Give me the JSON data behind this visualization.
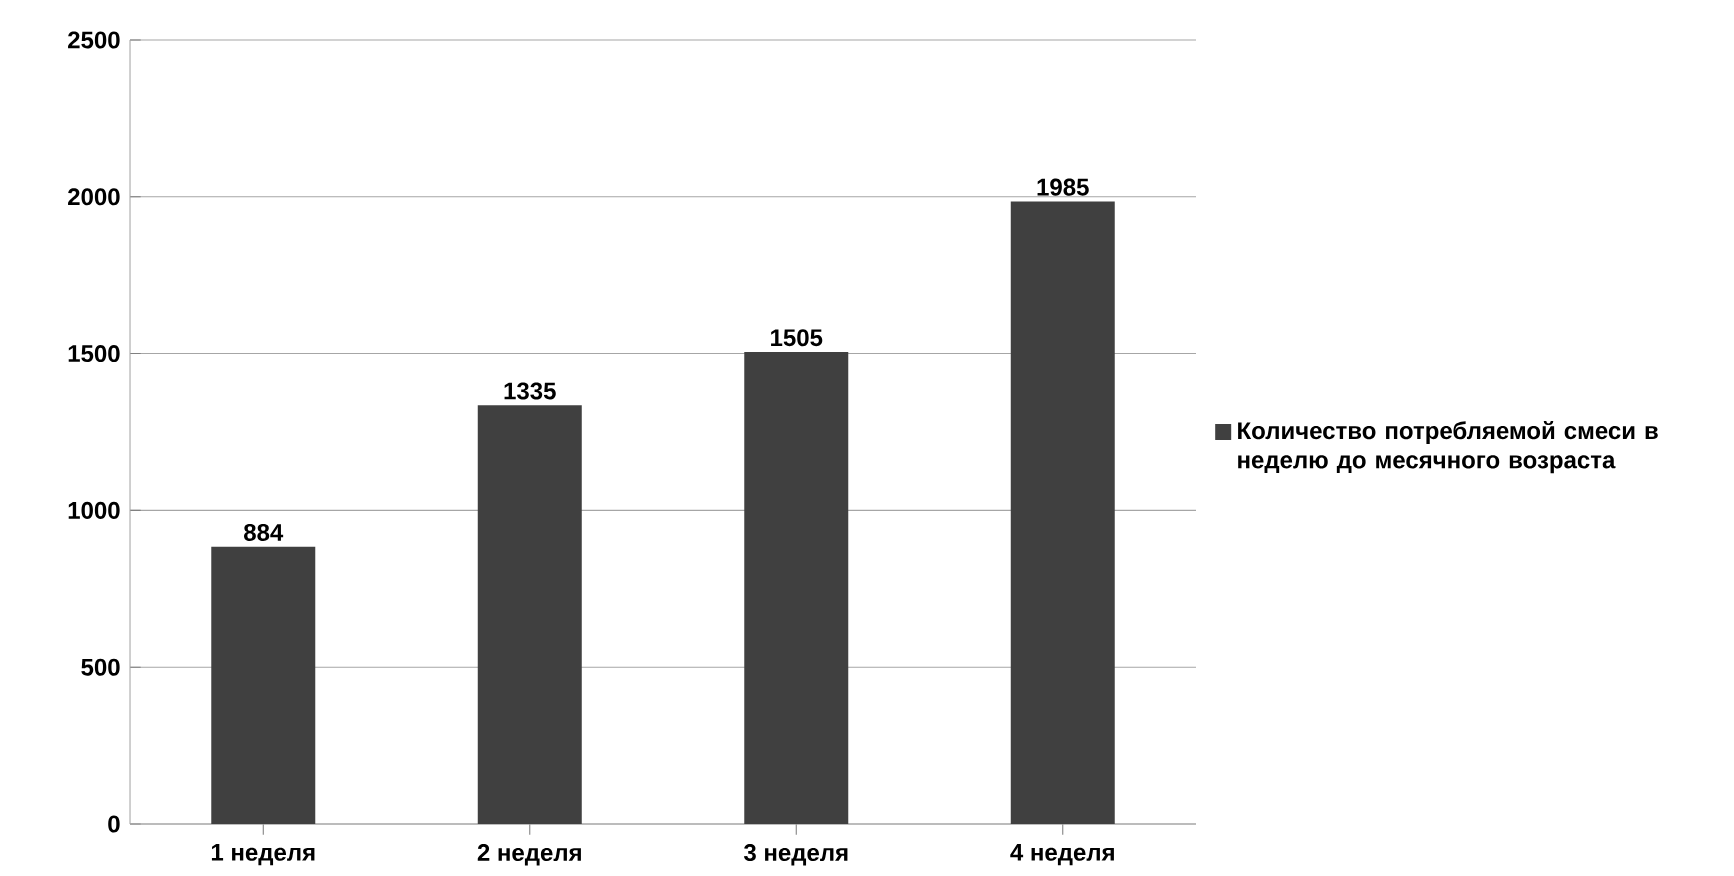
{
  "chart_data": {
    "type": "bar",
    "categories": [
      "1 неделя",
      "2 неделя",
      "3 неделя",
      "4 неделя"
    ],
    "series": [
      {
        "name": "Количество потребляемой смеси в неделю до месячного возраста",
        "color": "#404040",
        "values": [
          884,
          1335,
          1505,
          1985
        ]
      }
    ],
    "ylim": [
      0,
      2500
    ],
    "yticks": [
      0,
      500,
      1000,
      1500,
      2000,
      2500
    ],
    "grid": "y",
    "legend": "right",
    "data_labels": true
  }
}
